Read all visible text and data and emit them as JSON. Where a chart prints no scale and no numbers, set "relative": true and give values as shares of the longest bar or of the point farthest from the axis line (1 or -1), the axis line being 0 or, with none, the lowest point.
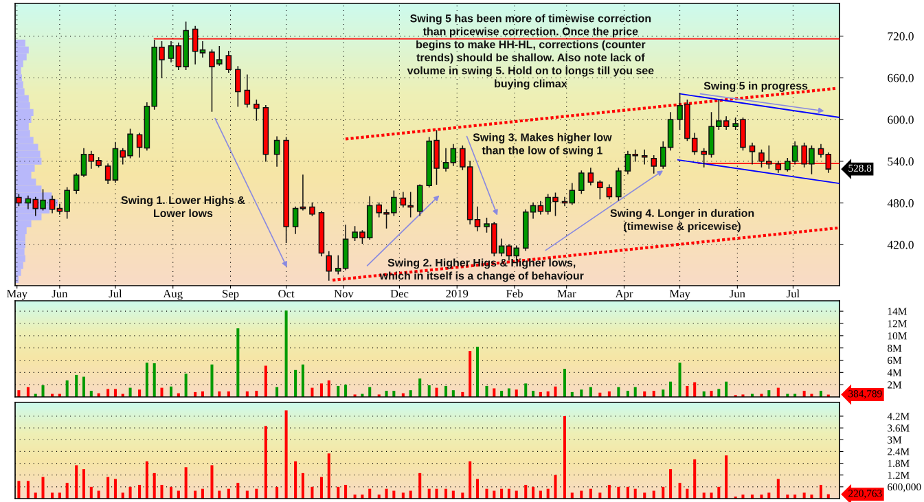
{
  "chart_data": [
    {
      "type": "candlestick",
      "x": [
        "2018-05-10",
        "2018-05-15",
        "2018-05-19",
        "2018-05-23",
        "2018-05-28",
        "2018-06-01",
        "2018-06-05",
        "2018-06-10",
        "2018-06-14",
        "2018-06-18",
        "2018-06-22",
        "2018-06-27",
        "2018-07-01",
        "2018-07-05",
        "2018-07-09",
        "2018-07-14",
        "2018-07-18",
        "2018-07-22",
        "2018-07-26",
        "2018-07-31",
        "2018-08-04",
        "2018-08-08",
        "2018-08-13",
        "2018-08-17",
        "2018-08-22",
        "2018-08-26",
        "2018-08-31",
        "2018-09-05",
        "2018-09-10",
        "2018-09-15",
        "2018-09-20",
        "2018-09-26",
        "2018-10-01",
        "2018-10-06",
        "2018-10-10",
        "2018-10-15",
        "2018-10-20",
        "2018-10-24",
        "2018-10-29",
        "2018-11-02",
        "2018-11-07",
        "2018-11-11",
        "2018-11-15",
        "2018-11-20",
        "2018-11-24",
        "2018-11-28",
        "2018-12-03",
        "2018-12-07",
        "2018-12-12",
        "2018-12-17",
        "2018-12-21",
        "2018-12-26",
        "2018-12-30",
        "2019-01-04",
        "2019-01-08",
        "2019-01-12",
        "2019-01-17",
        "2019-01-21",
        "2019-01-25",
        "2019-01-29",
        "2019-02-02",
        "2019-02-07",
        "2019-02-11",
        "2019-02-15",
        "2019-02-19",
        "2019-02-23",
        "2019-02-28",
        "2019-03-04",
        "2019-03-09",
        "2019-03-14",
        "2019-03-19",
        "2019-03-24",
        "2019-03-29",
        "2019-04-03",
        "2019-04-07",
        "2019-04-12",
        "2019-04-17",
        "2019-04-22",
        "2019-04-26",
        "2019-05-01",
        "2019-05-05",
        "2019-05-09",
        "2019-05-14",
        "2019-05-18",
        "2019-05-22",
        "2019-05-26",
        "2019-05-31",
        "2019-06-04",
        "2019-06-09",
        "2019-06-14",
        "2019-06-18",
        "2019-06-23",
        "2019-06-28",
        "2019-07-02",
        "2019-07-07",
        "2019-07-11",
        "2019-07-16",
        "2019-07-20"
      ],
      "ohlc": [
        [
          488,
          492,
          476,
          480
        ],
        [
          480,
          490,
          472,
          486
        ],
        [
          485,
          488,
          462,
          472
        ],
        [
          472,
          499,
          470,
          484
        ],
        [
          485,
          490,
          466,
          471
        ],
        [
          472,
          478,
          464,
          468
        ],
        [
          468,
          502,
          458,
          498
        ],
        [
          498,
          522,
          494,
          520
        ],
        [
          520,
          558,
          518,
          550
        ],
        [
          550,
          554,
          530,
          540
        ],
        [
          541,
          545,
          532,
          534
        ],
        [
          533,
          536,
          508,
          513
        ],
        [
          513,
          567,
          510,
          558
        ],
        [
          555,
          558,
          536,
          546
        ],
        [
          548,
          586,
          545,
          579
        ],
        [
          578,
          580,
          546,
          560
        ],
        [
          559,
          624,
          556,
          619
        ],
        [
          619,
          714,
          615,
          704
        ],
        [
          704,
          712,
          660,
          686
        ],
        [
          688,
          712,
          683,
          706
        ],
        [
          706,
          710,
          672,
          676
        ],
        [
          676,
          740,
          672,
          728
        ],
        [
          730,
          734,
          680,
          698
        ],
        [
          696,
          712,
          690,
          700
        ],
        [
          697,
          700,
          612,
          676
        ],
        [
          680,
          705,
          678,
          686
        ],
        [
          692,
          698,
          668,
          672
        ],
        [
          672,
          676,
          619,
          640
        ],
        [
          642,
          664,
          618,
          622
        ],
        [
          622,
          628,
          599,
          616
        ],
        [
          617,
          620,
          540,
          550
        ],
        [
          550,
          575,
          533,
          570
        ],
        [
          570,
          574,
          423,
          446
        ],
        [
          446,
          474,
          436,
          472
        ],
        [
          474,
          520,
          470,
          472
        ],
        [
          474,
          480,
          462,
          464
        ],
        [
          466,
          468,
          404,
          408
        ],
        [
          404,
          410,
          369,
          382
        ],
        [
          382,
          404,
          378,
          386
        ],
        [
          386,
          448,
          384,
          428
        ],
        [
          430,
          446,
          426,
          438
        ],
        [
          438,
          440,
          422,
          430
        ],
        [
          430,
          489,
          428,
          476
        ],
        [
          477,
          480,
          460,
          466
        ],
        [
          466,
          470,
          444,
          464
        ],
        [
          466,
          497,
          462,
          488
        ],
        [
          487,
          495,
          474,
          477
        ],
        [
          476,
          495,
          460,
          474
        ],
        [
          468,
          506,
          462,
          505
        ],
        [
          505,
          574,
          503,
          569
        ],
        [
          570,
          584,
          507,
          530
        ],
        [
          530,
          558,
          526,
          538
        ],
        [
          538,
          564,
          534,
          558
        ],
        [
          558,
          562,
          528,
          532
        ],
        [
          532,
          540,
          450,
          456
        ],
        [
          456,
          474,
          440,
          446
        ],
        [
          446,
          458,
          438,
          450
        ],
        [
          450,
          452,
          404,
          408
        ],
        [
          408,
          428,
          404,
          418
        ],
        [
          418,
          420,
          398,
          404
        ],
        [
          404,
          418,
          398,
          415
        ],
        [
          415,
          470,
          412,
          467
        ],
        [
          467,
          480,
          458,
          476
        ],
        [
          476,
          482,
          464,
          468
        ],
        [
          468,
          492,
          464,
          488
        ],
        [
          488,
          494,
          462,
          482
        ],
        [
          482,
          488,
          476,
          480
        ],
        [
          480,
          508,
          478,
          498
        ],
        [
          498,
          526,
          494,
          523
        ],
        [
          523,
          530,
          506,
          510
        ],
        [
          510,
          512,
          486,
          502
        ],
        [
          502,
          506,
          486,
          489
        ],
        [
          489,
          530,
          484,
          526
        ],
        [
          526,
          554,
          522,
          550
        ],
        [
          550,
          556,
          540,
          548
        ],
        [
          548,
          556,
          536,
          546
        ],
        [
          544,
          548,
          523,
          533
        ],
        [
          533,
          568,
          530,
          560
        ],
        [
          560,
          610,
          556,
          600
        ],
        [
          600,
          637,
          586,
          620
        ],
        [
          622,
          628,
          570,
          573
        ],
        [
          573,
          580,
          550,
          554
        ],
        [
          554,
          558,
          532,
          550
        ],
        [
          550,
          610,
          546,
          590
        ],
        [
          590,
          628,
          586,
          598
        ],
        [
          598,
          604,
          586,
          590
        ],
        [
          590,
          602,
          586,
          594
        ],
        [
          600,
          602,
          556,
          560
        ],
        [
          562,
          566,
          536,
          554
        ],
        [
          552,
          556,
          532,
          540
        ],
        [
          540,
          562,
          530,
          536
        ],
        [
          536,
          540,
          524,
          528
        ],
        [
          528,
          544,
          526,
          540
        ],
        [
          540,
          568,
          536,
          562
        ],
        [
          562,
          566,
          532,
          536
        ],
        [
          536,
          562,
          522,
          558
        ],
        [
          558,
          564,
          546,
          550
        ],
        [
          550,
          552,
          524,
          528.8
        ]
      ],
      "colors": [
        "#ff0000",
        "#009a00",
        "#ff0000",
        "#009a00",
        "#ff0000",
        "#ff0000",
        "#009a00",
        "#009a00",
        "#009a00",
        "#ff0000",
        "#ff0000",
        "#ff0000",
        "#009a00",
        "#ff0000",
        "#009a00",
        "#ff0000",
        "#009a00",
        "#009a00",
        "#ff0000",
        "#009a00",
        "#ff0000",
        "#009a00",
        "#ff0000",
        "#009a00",
        "#ff0000",
        "#009a00",
        "#ff0000",
        "#ff0000",
        "#ff0000",
        "#ff0000",
        "#ff0000",
        "#009a00",
        "#ff0000",
        "#009a00",
        "#ff0000",
        "#ff0000",
        "#ff0000",
        "#ff0000",
        "#009a00",
        "#009a00",
        "#009a00",
        "#ff0000",
        "#009a00",
        "#ff0000",
        "#ff0000",
        "#009a00",
        "#ff0000",
        "#ff0000",
        "#009a00",
        "#009a00",
        "#ff0000",
        "#009a00",
        "#009a00",
        "#ff0000",
        "#ff0000",
        "#ff0000",
        "#009a00",
        "#ff0000",
        "#009a00",
        "#ff0000",
        "#009a00",
        "#009a00",
        "#009a00",
        "#ff0000",
        "#009a00",
        "#ff0000",
        "#ff0000",
        "#009a00",
        "#009a00",
        "#ff0000",
        "#ff0000",
        "#ff0000",
        "#009a00",
        "#009a00",
        "#ff0000",
        "#ff0000",
        "#ff0000",
        "#009a00",
        "#009a00",
        "#009a00",
        "#ff0000",
        "#ff0000",
        "#ff0000",
        "#009a00",
        "#009a00",
        "#ff0000",
        "#009a00",
        "#ff0000",
        "#ff0000",
        "#ff0000",
        "#ff0000",
        "#ff0000",
        "#009a00",
        "#009a00",
        "#ff0000",
        "#009a00",
        "#ff0000",
        "#ff0000"
      ],
      "xlim": [
        "2018-05-08",
        "2019-07-26"
      ],
      "xticks": [
        {
          "value": "2018-05-09",
          "label": "May"
        },
        {
          "value": "2018-06-01",
          "label": "Jun"
        },
        {
          "value": "2018-07-01",
          "label": "Jul"
        },
        {
          "value": "2018-08-01",
          "label": "Aug"
        },
        {
          "value": "2018-09-01",
          "label": "Sep"
        },
        {
          "value": "2018-10-01",
          "label": "Oct"
        },
        {
          "value": "2018-11-01",
          "label": "Nov"
        },
        {
          "value": "2018-12-01",
          "label": "Dec"
        },
        {
          "value": "2019-01-01",
          "label": "2019"
        },
        {
          "value": "2019-02-01",
          "label": "Feb"
        },
        {
          "value": "2019-03-01",
          "label": "Mar"
        },
        {
          "value": "2019-04-01",
          "label": "Apr"
        },
        {
          "value": "2019-05-01",
          "label": "May"
        },
        {
          "value": "2019-06-01",
          "label": "Jun"
        },
        {
          "value": "2019-07-01",
          "label": "Jul"
        }
      ],
      "ylim": [
        361,
        767
      ],
      "yticks": [
        {
          "value": 420,
          "label": "420.0"
        },
        {
          "value": 480,
          "label": "480.0"
        },
        {
          "value": 540,
          "label": "540.0"
        },
        {
          "value": 600,
          "label": "600.0"
        },
        {
          "value": 660,
          "label": "660.0"
        },
        {
          "value": 720,
          "label": "720.0"
        }
      ],
      "grid": true,
      "series": [
        {
          "type": "line",
          "color": "#ff0000",
          "line_style": "solid",
          "x": [
            "2018-07-22",
            "2019-07-26"
          ],
          "values": [
            716,
            716
          ]
        },
        {
          "type": "line",
          "color": "#ff0000",
          "line_style": "solid",
          "x": [
            "2019-05-11",
            "2019-07-26"
          ],
          "values": [
            537,
            537
          ]
        },
        {
          "type": "line",
          "color": "#ff0000",
          "line_style": "dotted",
          "x": [
            "2018-11-02",
            "2019-07-25"
          ],
          "values": [
            572,
            645
          ]
        },
        {
          "type": "line",
          "color": "#ff0000",
          "line_style": "dotted",
          "x": [
            "2018-10-26",
            "2019-07-25"
          ],
          "values": [
            369,
            444
          ]
        },
        {
          "type": "line",
          "color": "#0000ff",
          "line_style": "solid",
          "x": [
            "2019-05-01",
            "2019-07-26"
          ],
          "values": [
            637,
            603
          ]
        },
        {
          "type": "line",
          "color": "#0000ff",
          "line_style": "solid",
          "x": [
            "2019-04-30",
            "2019-07-26"
          ],
          "values": [
            542,
            508
          ]
        }
      ],
      "annotations": [
        "Swing 5 has been more of timewise correction\nthan pricewise correction. Once the price\nbegins to make HH-HL, corrections (counter\ntrends) should be shallow. Also note lack of\nvolume in swing 5. Hold on to longs till you see\nbuying climax",
        "Swing 5 in progress",
        "Swing 3. Makes higher low\nthan the low of swing 1",
        "Swing 1. Lower Highs &\nLower lows",
        "Swing 4. Longer in duration\n(timewise & pricewise)",
        "Swing 2. Higher Higs & Higher lows,\nwhich in itself is a change of behaviour",
        "528.8"
      ]
    },
    {
      "type": "bar",
      "orientation": "horizontal",
      "relative": true,
      "color": "#b8b8fa",
      "categories": [
        null,
        null,
        null,
        null,
        null,
        null,
        null,
        null,
        null,
        null,
        null,
        null,
        null,
        null,
        null,
        null,
        null,
        null,
        null,
        null,
        null,
        null,
        null,
        null,
        null,
        null,
        null,
        null,
        null,
        null,
        null,
        null,
        null,
        null,
        null
      ],
      "values": [
        0.24,
        0.32,
        0.27,
        0.19,
        0.14,
        0.16,
        0.19,
        0.22,
        0.32,
        0.35,
        0.43,
        0.38,
        0.32,
        0.35,
        0.43,
        0.54,
        0.59,
        0.62,
        0.46,
        0.38,
        0.49,
        0.62,
        0.86,
        1,
        0.81,
        0.62,
        0.38,
        0.27,
        0.24,
        0.24,
        0.22,
        0.24,
        0.19,
        0.14,
        0.08
      ]
    },
    {
      "type": "bar",
      "x": [
        "2018-05-10",
        "2018-05-15",
        "2018-05-19",
        "2018-05-23",
        "2018-05-28",
        "2018-06-01",
        "2018-06-05",
        "2018-06-10",
        "2018-06-14",
        "2018-06-18",
        "2018-06-22",
        "2018-06-27",
        "2018-07-01",
        "2018-07-05",
        "2018-07-09",
        "2018-07-14",
        "2018-07-18",
        "2018-07-22",
        "2018-07-26",
        "2018-07-31",
        "2018-08-04",
        "2018-08-08",
        "2018-08-13",
        "2018-08-17",
        "2018-08-22",
        "2018-08-26",
        "2018-08-31",
        "2018-09-05",
        "2018-09-10",
        "2018-09-15",
        "2018-09-20",
        "2018-09-26",
        "2018-10-01",
        "2018-10-06",
        "2018-10-10",
        "2018-10-15",
        "2018-10-20",
        "2018-10-24",
        "2018-10-29",
        "2018-11-02",
        "2018-11-07",
        "2018-11-11",
        "2018-11-15",
        "2018-11-20",
        "2018-11-24",
        "2018-11-28",
        "2018-12-03",
        "2018-12-07",
        "2018-12-12",
        "2018-12-17",
        "2018-12-21",
        "2018-12-26",
        "2018-12-30",
        "2019-01-04",
        "2019-01-08",
        "2019-01-12",
        "2019-01-17",
        "2019-01-21",
        "2019-01-25",
        "2019-01-29",
        "2019-02-02",
        "2019-02-07",
        "2019-02-11",
        "2019-02-15",
        "2019-02-19",
        "2019-02-23",
        "2019-02-28",
        "2019-03-04",
        "2019-03-09",
        "2019-03-14",
        "2019-03-19",
        "2019-03-24",
        "2019-03-29",
        "2019-04-03",
        "2019-04-07",
        "2019-04-12",
        "2019-04-17",
        "2019-04-22",
        "2019-04-26",
        "2019-05-01",
        "2019-05-05",
        "2019-05-09",
        "2019-05-14",
        "2019-05-18",
        "2019-05-22",
        "2019-05-26",
        "2019-05-31",
        "2019-06-04",
        "2019-06-09",
        "2019-06-14",
        "2019-06-18",
        "2019-06-23",
        "2019-06-28",
        "2019-07-02",
        "2019-07-07",
        "2019-07-11",
        "2019-07-16",
        "2019-07-20"
      ],
      "values": [
        1100000,
        1600000,
        500000,
        1900000,
        500000,
        500000,
        2700000,
        3600000,
        3300000,
        1000000,
        600000,
        1300000,
        1300000,
        500000,
        1500000,
        1200000,
        5600000,
        5500000,
        1500000,
        1700000,
        600000,
        3800000,
        800000,
        900000,
        5300000,
        900000,
        900000,
        11200000,
        900000,
        1000000,
        5100000,
        1600000,
        14100000,
        4400000,
        5300000,
        1500000,
        2200000,
        2700000,
        1800000,
        2000000,
        400000,
        500000,
        1600000,
        400000,
        1000000,
        1000000,
        600000,
        1100000,
        3000000,
        1900000,
        1500000,
        1800000,
        1100000,
        800000,
        7500000,
        8200000,
        1800000,
        1400000,
        1000000,
        1400000,
        1200000,
        2200000,
        1000000,
        800000,
        900000,
        1700000,
        4600000,
        800000,
        1200000,
        1600000,
        700000,
        900000,
        1600000,
        1000000,
        1600000,
        900000,
        1000000,
        1200000,
        2500000,
        5600000,
        1800000,
        2400000,
        900000,
        1000000,
        1300000,
        2500000,
        300000,
        400000,
        500000,
        500000,
        1100000,
        1500000,
        500000,
        500000,
        1000000,
        500000,
        1000000,
        384789
      ],
      "colors": [
        "#ff0000",
        "#ff0000",
        "#009a00",
        "#009a00",
        "#ff0000",
        "#ff0000",
        "#009a00",
        "#009a00",
        "#009a00",
        "#009a00",
        "#ff0000",
        "#ff0000",
        "#ff0000",
        "#ff0000",
        "#009a00",
        "#ff0000",
        "#009a00",
        "#009a00",
        "#ff0000",
        "#009a00",
        "#ff0000",
        "#009a00",
        "#ff0000",
        "#ff0000",
        "#009a00",
        "#ff0000",
        "#ff0000",
        "#009a00",
        "#ff0000",
        "#ff0000",
        "#ff0000",
        "#009a00",
        "#009a00",
        "#009a00",
        "#009a00",
        "#ff0000",
        "#ff0000",
        "#ff0000",
        "#009a00",
        "#009a00",
        "#ff0000",
        "#009a00",
        "#009a00",
        "#ff0000",
        "#009a00",
        "#009a00",
        "#ff0000",
        "#009a00",
        "#009a00",
        "#009a00",
        "#ff0000",
        "#009a00",
        "#009a00",
        "#ff0000",
        "#ff0000",
        "#009a00",
        "#009a00",
        "#ff0000",
        "#009a00",
        "#009a00",
        "#ff0000",
        "#009a00",
        "#009a00",
        "#ff0000",
        "#ff0000",
        "#ff0000",
        "#009a00",
        "#009a00",
        "#009a00",
        "#009a00",
        "#ff0000",
        "#ff0000",
        "#009a00",
        "#009a00",
        "#009a00",
        "#ff0000",
        "#ff0000",
        "#009a00",
        "#009a00",
        "#009a00",
        "#ff0000",
        "#ff0000",
        "#009a00",
        "#ff0000",
        "#009a00",
        "#009a00",
        "#ff0000",
        "#ff0000",
        "#009a00",
        "#ff0000",
        "#009a00",
        "#ff0000",
        "#009a00",
        "#009a00",
        "#ff0000",
        "#ff0000",
        "#009a00",
        "#ff0000"
      ],
      "xlim": [
        "2018-05-08",
        "2019-07-26"
      ],
      "ylim": [
        0,
        15700000
      ],
      "yticks": [
        {
          "value": 2000000,
          "label": "2M"
        },
        {
          "value": 4000000,
          "label": "4M"
        },
        {
          "value": 6000000,
          "label": "6M"
        },
        {
          "value": 8000000,
          "label": "8M"
        },
        {
          "value": 10000000,
          "label": "10M"
        },
        {
          "value": 12000000,
          "label": "12M"
        },
        {
          "value": 14000000,
          "label": "14M"
        }
      ],
      "grid": "y",
      "tick_labels": "y",
      "annotations": [
        "384,789"
      ]
    },
    {
      "type": "bar",
      "x": [
        "2018-05-10",
        "2018-05-15",
        "2018-05-19",
        "2018-05-23",
        "2018-05-28",
        "2018-06-01",
        "2018-06-05",
        "2018-06-10",
        "2018-06-14",
        "2018-06-18",
        "2018-06-22",
        "2018-06-27",
        "2018-07-01",
        "2018-07-05",
        "2018-07-09",
        "2018-07-14",
        "2018-07-18",
        "2018-07-22",
        "2018-07-26",
        "2018-07-31",
        "2018-08-04",
        "2018-08-08",
        "2018-08-13",
        "2018-08-17",
        "2018-08-22",
        "2018-08-26",
        "2018-08-31",
        "2018-09-05",
        "2018-09-10",
        "2018-09-15",
        "2018-09-20",
        "2018-09-26",
        "2018-10-01",
        "2018-10-06",
        "2018-10-10",
        "2018-10-15",
        "2018-10-20",
        "2018-10-24",
        "2018-10-29",
        "2018-11-02",
        "2018-11-07",
        "2018-11-11",
        "2018-11-15",
        "2018-11-20",
        "2018-11-24",
        "2018-11-28",
        "2018-12-03",
        "2018-12-07",
        "2018-12-12",
        "2018-12-17",
        "2018-12-21",
        "2018-12-26",
        "2018-12-30",
        "2019-01-04",
        "2019-01-08",
        "2019-01-12",
        "2019-01-17",
        "2019-01-21",
        "2019-01-25",
        "2019-01-29",
        "2019-02-02",
        "2019-02-07",
        "2019-02-11",
        "2019-02-15",
        "2019-02-19",
        "2019-02-23",
        "2019-02-28",
        "2019-03-04",
        "2019-03-09",
        "2019-03-14",
        "2019-03-19",
        "2019-03-24",
        "2019-03-29",
        "2019-04-03",
        "2019-04-07",
        "2019-04-12",
        "2019-04-17",
        "2019-04-22",
        "2019-04-26",
        "2019-05-01",
        "2019-05-05",
        "2019-05-09",
        "2019-05-14",
        "2019-05-18",
        "2019-05-22",
        "2019-05-26",
        "2019-05-31",
        "2019-06-04",
        "2019-06-09",
        "2019-06-14",
        "2019-06-18",
        "2019-06-23",
        "2019-06-28",
        "2019-07-02",
        "2019-07-07",
        "2019-07-11",
        "2019-07-16",
        "2019-07-20"
      ],
      "values": [
        900000,
        900000,
        300000,
        1100000,
        300000,
        300000,
        800000,
        1700000,
        1500000,
        600000,
        400000,
        1100000,
        1000000,
        300000,
        600000,
        700000,
        1900000,
        1300000,
        700000,
        600000,
        400000,
        1600000,
        400000,
        500000,
        1700000,
        400000,
        500000,
        800000,
        400000,
        500000,
        3700000,
        600000,
        4500000,
        1900000,
        1300000,
        600000,
        1100000,
        2300000,
        600000,
        700000,
        200000,
        200000,
        500000,
        200000,
        500000,
        400000,
        300000,
        400000,
        1300000,
        500000,
        500000,
        500000,
        400000,
        300000,
        1900000,
        1000000,
        500000,
        400000,
        500000,
        500000,
        400000,
        700000,
        600000,
        400000,
        500000,
        1200000,
        4200000,
        300000,
        400000,
        500000,
        300000,
        700000,
        600000,
        600000,
        500000,
        300000,
        400000,
        600000,
        1500000,
        800000,
        500000,
        2000000,
        300000,
        300000,
        600000,
        2200000,
        100000,
        200000,
        200000,
        200000,
        300000,
        1000000,
        200000,
        200000,
        300000,
        200000,
        700000,
        220763
      ],
      "color": "#ff0000",
      "xlim": [
        "2018-05-08",
        "2019-07-26"
      ],
      "ylim": [
        0,
        4900000
      ],
      "yticks": [
        {
          "value": 600000,
          "label": "600,000"
        },
        {
          "value": 1200000,
          "label": "1.2M"
        },
        {
          "value": 1800000,
          "label": "1.8M"
        },
        {
          "value": 2400000,
          "label": "2.4M"
        },
        {
          "value": 3000000,
          "label": "3M"
        },
        {
          "value": 3600000,
          "label": "3.6M"
        },
        {
          "value": 4200000,
          "label": "4.2M"
        }
      ],
      "grid": "y",
      "tick_labels": "y",
      "annotations": [
        "220,763"
      ]
    }
  ]
}
